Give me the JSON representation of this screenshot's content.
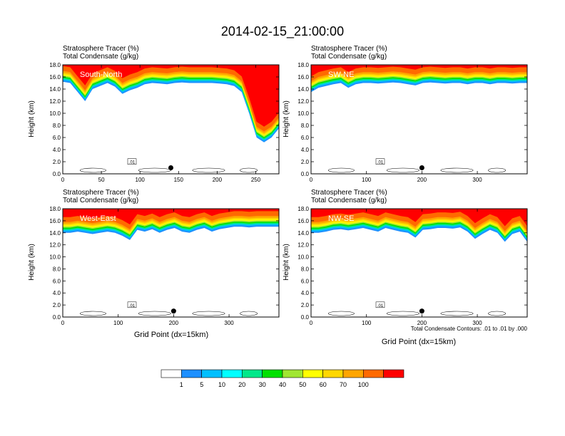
{
  "title": "2014-02-15_21:00:00",
  "panel_title_1": "Stratosphere Tracer   (%)",
  "panel_title_2": "Total Condensate   (g/kg)",
  "ylabel": "Height (km)",
  "xlabel": "Grid Point (dx=15km)",
  "contour_note": "Total Condensate Contours: .01 to .01 by .000",
  "contour_label": ".01",
  "colorbar": {
    "colors": [
      "#ffffff",
      "#1e90ff",
      "#00bfff",
      "#00ffff",
      "#00e88a",
      "#00e000",
      "#a0e632",
      "#ffff00",
      "#ffd700",
      "#ffa500",
      "#ff6a00",
      "#ff0000"
    ],
    "labels": [
      "1",
      "5",
      "10",
      "20",
      "30",
      "40",
      "50",
      "60",
      "70",
      "100"
    ]
  },
  "chart_data": [
    {
      "type": "heatmap",
      "label": "South-North",
      "xticks": [
        0,
        50,
        100,
        150,
        200,
        250
      ],
      "xlim": [
        0,
        280
      ],
      "yticks": [
        "0.0",
        "2.0",
        "4.0",
        "6.0",
        "8.0",
        "10.0",
        "12.0",
        "14.0",
        "16.0",
        "18.0"
      ],
      "ylim": [
        0,
        18
      ],
      "marker_x": 140,
      "tracer_top_km": [
        15.2,
        15.0,
        13.5,
        12.0,
        14.0,
        14.5,
        15.0,
        14.4,
        13.2,
        13.8,
        14.2,
        14.8,
        15.0,
        14.9,
        14.8,
        15.0,
        15.1,
        15.0,
        15.0,
        15.0,
        15.0,
        14.9,
        14.8,
        14.5,
        13.5,
        10.0,
        6.0,
        5.2,
        6.0,
        7.5
      ]
    },
    {
      "type": "heatmap",
      "label": "SW-NE",
      "xticks": [
        0,
        100,
        200,
        300
      ],
      "xlim": [
        0,
        390
      ],
      "yticks": [
        "0.0",
        "2.0",
        "4.0",
        "6.0",
        "8.0",
        "10.0",
        "12.0",
        "14.0",
        "16.0",
        "18.0"
      ],
      "ylim": [
        0,
        18
      ],
      "marker_x": 200,
      "tracer_top_km": [
        13.5,
        14.2,
        14.5,
        14.8,
        15.0,
        14.2,
        14.8,
        15.0,
        15.0,
        14.9,
        15.0,
        15.1,
        15.0,
        14.8,
        14.6,
        15.0,
        15.1,
        15.0,
        14.9,
        15.0,
        15.0,
        14.8,
        15.0,
        15.0,
        14.8,
        15.0,
        15.0,
        14.9,
        15.0,
        15.0
      ]
    },
    {
      "type": "heatmap",
      "label": "West-East",
      "xticks": [
        0,
        100,
        200,
        300
      ],
      "xlim": [
        0,
        390
      ],
      "yticks": [
        "0.0",
        "2.0",
        "4.0",
        "6.0",
        "8.0",
        "10.0",
        "12.0",
        "14.0",
        "16.0",
        "18.0"
      ],
      "ylim": [
        0,
        18
      ],
      "marker_x": 200,
      "tracer_top_km": [
        14.0,
        14.0,
        14.2,
        14.0,
        13.8,
        14.0,
        14.2,
        14.0,
        13.5,
        12.8,
        14.5,
        14.2,
        14.6,
        14.0,
        14.5,
        14.8,
        14.2,
        14.0,
        14.5,
        14.8,
        14.2,
        14.6,
        14.8,
        15.0,
        15.0,
        14.9,
        15.0,
        15.0,
        15.0,
        15.0
      ]
    },
    {
      "type": "heatmap",
      "label": "NW-SE",
      "xticks": [
        0,
        100,
        200,
        300
      ],
      "xlim": [
        0,
        390
      ],
      "yticks": [
        "0.0",
        "2.0",
        "4.0",
        "6.0",
        "8.0",
        "10.0",
        "12.0",
        "14.0",
        "16.0",
        "18.0"
      ],
      "ylim": [
        0,
        18
      ],
      "marker_x": 200,
      "tracer_top_km": [
        14.0,
        14.0,
        14.2,
        14.5,
        14.6,
        14.4,
        14.6,
        14.8,
        14.5,
        14.2,
        14.8,
        14.5,
        14.2,
        14.0,
        13.2,
        14.5,
        14.6,
        14.8,
        14.8,
        14.7,
        14.9,
        14.2,
        13.0,
        13.8,
        14.5,
        14.0,
        12.5,
        13.8,
        14.2,
        12.5
      ]
    }
  ]
}
